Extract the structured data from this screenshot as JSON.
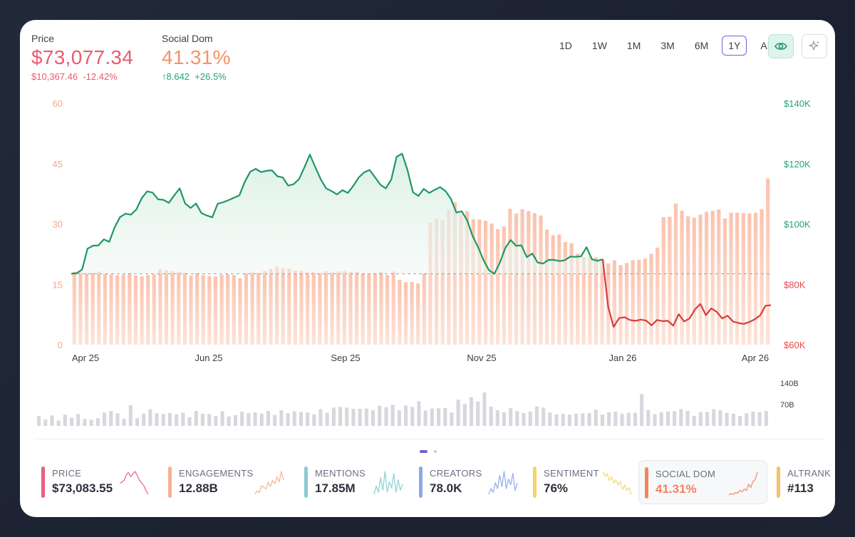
{
  "header": {
    "price": {
      "label": "Price",
      "value": "$73,077.34",
      "change_abs": "$10,367.46",
      "change_pct": "-12.42%",
      "color": "#ea5a6f"
    },
    "social_dom": {
      "label": "Social Dom",
      "value": "41.31%",
      "change_abs": "↑8.642",
      "change_pct": "+26.5%",
      "color": "#f4926a",
      "change_color": "#22a37a"
    }
  },
  "ranges": [
    "1D",
    "1W",
    "1M",
    "3M",
    "6M",
    "1Y",
    "ALL"
  ],
  "active_range": "1Y",
  "toolbar": {
    "eye_icon": "eye-icon",
    "sparkle_icon": "sparkle-icon"
  },
  "chart_data": {
    "type": "bar+line",
    "x_ticks": [
      "Apr 25",
      "Jun 25",
      "Sep 25",
      "Nov 25",
      "Jan 26",
      "Apr 26"
    ],
    "left_axis": {
      "ticks": [
        "60",
        "45",
        "30",
        "15",
        "0"
      ],
      "ylim": [
        0,
        60
      ],
      "color": "#f4a88a"
    },
    "right_axis": {
      "ticks": [
        "$140K",
        "$120K",
        "$100K",
        "$80K",
        "$60K"
      ],
      "ylim": [
        60000,
        140000
      ],
      "color_upper": "#22a37a",
      "color_lower": "#e5484d"
    },
    "reference_price": 83500,
    "social_dom_bars": [
      18.1,
      18.0,
      17.8,
      17.9,
      18.2,
      17.6,
      17.5,
      17.3,
      17.4,
      17.6,
      17.2,
      17.0,
      17.3,
      17.5,
      18.7,
      18.5,
      18.3,
      18.1,
      17.9,
      17.2,
      17.8,
      17.3,
      17.0,
      16.9,
      17.4,
      17.5,
      17.3,
      16.5,
      17.8,
      18.0,
      17.9,
      18.3,
      18.9,
      19.4,
      19.1,
      18.9,
      18.4,
      18.4,
      18.0,
      18.1,
      17.8,
      18.3,
      18.0,
      18.2,
      18.3,
      18.1,
      18.1,
      17.7,
      17.6,
      17.8,
      18.1,
      17.3,
      18.2,
      16.1,
      15.5,
      15.6,
      15.2,
      17.8,
      30.4,
      31.3,
      31.0,
      33.6,
      35.4,
      32.6,
      33.2,
      31.2,
      31.1,
      30.8,
      30.1,
      28.7,
      29.4,
      33.8,
      32.6,
      33.7,
      33.2,
      32.7,
      32.1,
      28.6,
      27.2,
      27.4,
      25.5,
      25.2,
      22.6,
      21.8,
      22.0,
      21.7,
      21.1,
      20.2,
      21.0,
      19.8,
      20.3,
      21.0,
      21.1,
      21.4,
      22.6,
      24.1,
      31.7,
      31.8,
      35.1,
      33.3,
      31.9,
      31.6,
      32.3,
      33.0,
      33.3,
      33.6,
      31.4,
      32.8,
      32.8,
      32.7,
      32.6,
      32.8,
      33.7,
      41.3
    ],
    "price": [
      83500,
      83700,
      84900,
      91800,
      92800,
      92900,
      94900,
      94100,
      98900,
      102300,
      103400,
      103100,
      104800,
      108600,
      110800,
      110400,
      108200,
      108000,
      107000,
      109500,
      111800,
      106800,
      105300,
      106800,
      103600,
      102800,
      102200,
      106700,
      107200,
      107900,
      108700,
      109500,
      114000,
      117300,
      118300,
      117200,
      117600,
      117800,
      115800,
      115400,
      112700,
      113200,
      114900,
      118800,
      123000,
      118800,
      114800,
      111800,
      110900,
      109800,
      111200,
      110300,
      112600,
      115400,
      117100,
      117900,
      115500,
      113000,
      111800,
      114700,
      122300,
      123300,
      117800,
      110500,
      109300,
      111600,
      110300,
      111300,
      112200,
      110900,
      108300,
      103800,
      104200,
      101200,
      96000,
      92400,
      88100,
      84700,
      83500,
      87100,
      91900,
      94700,
      92800,
      92900,
      89000,
      90200,
      87200,
      86900,
      88100,
      88100,
      87700,
      88000,
      89200,
      89100,
      89300,
      92300,
      88300,
      87800,
      88300,
      72500,
      65900,
      68800,
      69100,
      68200,
      67900,
      68300,
      68000,
      66400,
      68200,
      67800,
      67900,
      66300,
      70100,
      67700,
      68700,
      71700,
      73500,
      69800,
      72000,
      70900,
      68700,
      69600,
      67700,
      67200,
      66900,
      67500,
      68400,
      69700,
      72900,
      73100
    ],
    "volume": [
      32,
      21,
      34,
      17,
      37,
      27,
      39,
      23,
      20,
      25,
      44,
      49,
      41,
      23,
      68,
      25,
      40,
      54,
      41,
      39,
      42,
      38,
      43,
      29,
      49,
      40,
      39,
      32,
      48,
      31,
      35,
      47,
      42,
      44,
      40,
      49,
      36,
      51,
      42,
      48,
      46,
      44,
      38,
      55,
      43,
      60,
      62,
      60,
      56,
      56,
      57,
      51,
      66,
      61,
      69,
      51,
      67,
      62,
      81,
      50,
      57,
      58,
      59,
      44,
      86,
      72,
      94,
      80,
      110,
      63,
      51,
      45,
      58,
      48,
      42,
      47,
      64,
      60,
      44,
      37,
      39,
      37,
      40,
      41,
      42,
      53,
      37,
      45,
      47,
      40,
      43,
      43,
      104,
      52,
      38,
      45,
      47,
      48,
      55,
      49,
      33,
      45,
      46,
      55,
      51,
      43,
      40,
      33,
      41,
      47,
      45,
      49
    ],
    "volume_axis": {
      "ticks": [
        "140B",
        "70B"
      ],
      "ylim": [
        0,
        140
      ]
    },
    "colors": {
      "bars": "#fbc7b4",
      "line_up": "#1f9766",
      "line_down": "#d73c3c",
      "volume": "#d6d8de"
    }
  },
  "metrics": [
    {
      "label": "PRICE",
      "value": "$73,083.55",
      "color": "#e9607a",
      "spark": [
        62,
        64,
        70,
        85,
        92,
        80,
        88,
        95,
        84,
        70,
        62,
        55,
        40,
        30
      ]
    },
    {
      "label": "ENGAGEMENTS",
      "value": "12.88B",
      "color": "#f6b094",
      "spark": [
        20,
        30,
        25,
        45,
        40,
        35,
        55,
        42,
        60,
        50,
        70,
        55,
        85,
        60
      ]
    },
    {
      "label": "MENTIONS",
      "value": "17.85M",
      "color": "#8acbd6",
      "spark": [
        30,
        50,
        35,
        70,
        40,
        85,
        35,
        60,
        45,
        80,
        35,
        65,
        40,
        55
      ]
    },
    {
      "label": "CREATORS",
      "value": "78.0K",
      "color": "#8ea7ea",
      "spark": [
        30,
        45,
        35,
        60,
        45,
        80,
        50,
        90,
        45,
        70,
        55,
        85,
        40,
        60
      ]
    },
    {
      "label": "SENTIMENT",
      "value": "76%",
      "color": "#f3d46a",
      "spark": [
        80,
        70,
        75,
        60,
        68,
        55,
        62,
        50,
        58,
        40,
        50,
        38,
        45,
        30
      ]
    },
    {
      "label": "SOCIAL DOM",
      "value": "41.31%",
      "color": "#f4825f",
      "spark": [
        20,
        25,
        22,
        28,
        26,
        35,
        30,
        40,
        35,
        55,
        45,
        65,
        70,
        95
      ]
    },
    {
      "label": "ALTRANK",
      "value": "#113",
      "color": "#f4c26a",
      "spark": []
    }
  ],
  "selected_metric": "SOCIAL DOM",
  "pagination": {
    "pages": 2,
    "current": 1
  }
}
